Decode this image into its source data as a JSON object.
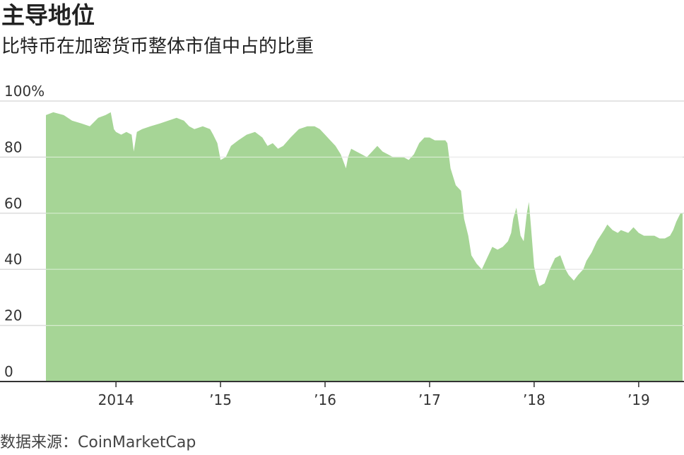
{
  "header": {
    "title": "主导地位",
    "subtitle": "比特币在加密货币整体市值中占的比重"
  },
  "footer": {
    "source": "数据来源：CoinMarketCap"
  },
  "colors": {
    "area_fill": "#a6d596",
    "gridline": "#dcdcdc",
    "axis": "#333333"
  },
  "chart_data": {
    "type": "area",
    "title": "主导地位",
    "subtitle": "比特币在加密货币整体市值中占的比重",
    "xlabel": "",
    "ylabel": "",
    "ylim": [
      0,
      100
    ],
    "xlim": [
      2013.33,
      2019.42
    ],
    "grid": true,
    "y_ticks": [
      {
        "value": 100,
        "label": "100%"
      },
      {
        "value": 80,
        "label": "80"
      },
      {
        "value": 60,
        "label": "60"
      },
      {
        "value": 40,
        "label": "40"
      },
      {
        "value": 20,
        "label": "20"
      },
      {
        "value": 0,
        "label": "0"
      }
    ],
    "x_ticks": [
      {
        "value": 2014,
        "label": "2014"
      },
      {
        "value": 2015,
        "label": "’15"
      },
      {
        "value": 2016,
        "label": "’16"
      },
      {
        "value": 2017,
        "label": "’17"
      },
      {
        "value": 2018,
        "label": "’18"
      },
      {
        "value": 2019,
        "label": "’19"
      }
    ],
    "series": [
      {
        "x": [
          2013.33,
          2013.4,
          2013.5,
          2013.58,
          2013.67,
          2013.75,
          2013.83,
          2013.9,
          2013.95,
          2013.98,
          2014.0,
          2014.05,
          2014.1,
          2014.15,
          2014.17,
          2014.2,
          2014.25,
          2014.33,
          2014.42,
          2014.5,
          2014.58,
          2014.65,
          2014.7,
          2014.75,
          2014.83,
          2014.9,
          2014.93,
          2014.97,
          2015.0,
          2015.05,
          2015.1,
          2015.17,
          2015.25,
          2015.33,
          2015.4,
          2015.45,
          2015.5,
          2015.55,
          2015.6,
          2015.67,
          2015.75,
          2015.83,
          2015.9,
          2015.95,
          2016.0,
          2016.05,
          2016.1,
          2016.15,
          2016.2,
          2016.22,
          2016.25,
          2016.3,
          2016.35,
          2016.4,
          2016.45,
          2016.5,
          2016.55,
          2016.6,
          2016.65,
          2016.7,
          2016.75,
          2016.8,
          2016.85,
          2016.9,
          2016.95,
          2017.0,
          2017.05,
          2017.1,
          2017.15,
          2017.17,
          2017.2,
          2017.25,
          2017.3,
          2017.33,
          2017.37,
          2017.4,
          2017.45,
          2017.5,
          2017.55,
          2017.6,
          2017.65,
          2017.7,
          2017.75,
          2017.78,
          2017.8,
          2017.83,
          2017.87,
          2017.9,
          2017.93,
          2017.95,
          2017.97,
          2018.0,
          2018.03,
          2018.05,
          2018.1,
          2018.15,
          2018.2,
          2018.25,
          2018.3,
          2018.33,
          2018.38,
          2018.42,
          2018.47,
          2018.5,
          2018.55,
          2018.6,
          2018.67,
          2018.7,
          2018.75,
          2018.8,
          2018.83,
          2018.9,
          2018.95,
          2019.0,
          2019.05,
          2019.1,
          2019.15,
          2019.2,
          2019.25,
          2019.3,
          2019.33,
          2019.36,
          2019.4,
          2019.42
        ],
        "values": [
          95,
          96,
          95,
          93,
          92,
          91,
          94,
          95,
          96,
          90,
          89,
          88,
          89,
          88,
          82,
          89,
          90,
          91,
          92,
          93,
          94,
          93,
          91,
          90,
          91,
          90,
          88,
          85,
          79,
          80,
          84,
          86,
          88,
          89,
          87,
          84,
          85,
          83,
          84,
          87,
          90,
          91,
          91,
          90,
          88,
          86,
          84,
          81,
          76,
          80,
          83,
          82,
          81,
          80,
          82,
          84,
          82,
          81,
          80,
          80,
          80,
          79,
          81,
          85,
          87,
          87,
          86,
          86,
          86,
          85,
          76,
          70,
          68,
          58,
          52,
          45,
          42,
          40,
          44,
          48,
          47,
          48,
          50,
          53,
          58,
          62,
          52,
          50,
          60,
          64,
          55,
          41,
          36,
          34,
          35,
          40,
          44,
          45,
          40,
          38,
          36,
          38,
          40,
          43,
          46,
          50,
          54,
          56,
          54,
          53,
          54,
          53,
          55,
          53,
          52,
          52,
          52,
          51,
          51,
          52,
          54,
          57,
          60,
          60
        ]
      }
    ]
  }
}
